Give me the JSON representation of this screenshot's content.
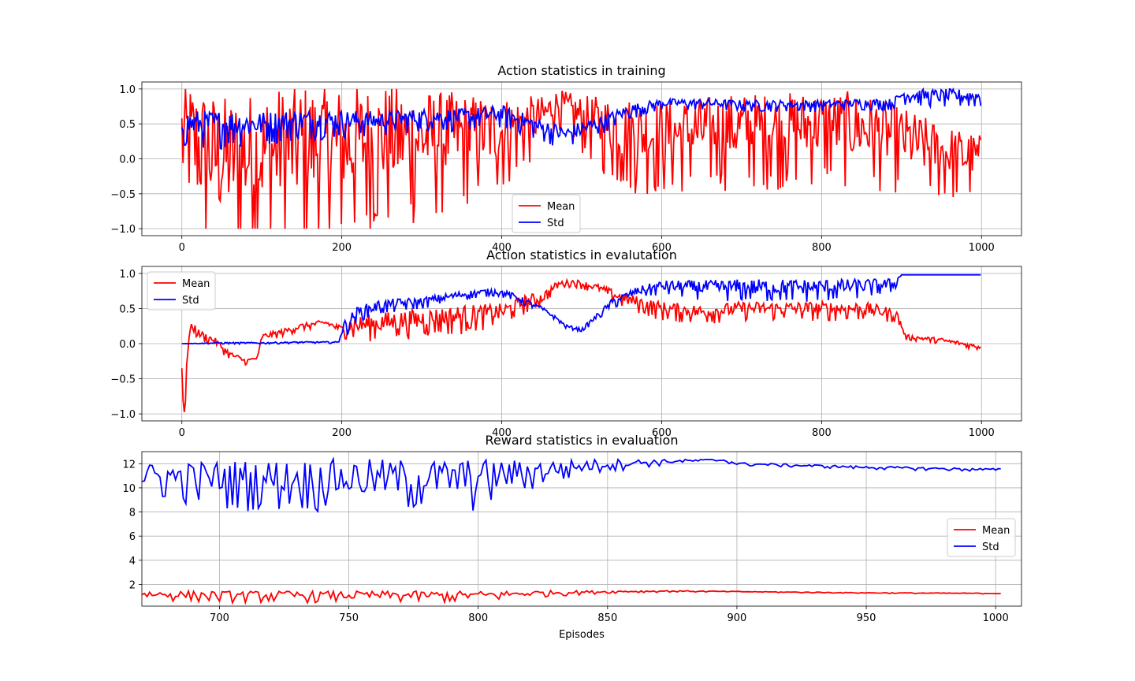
{
  "chart_data": [
    {
      "type": "line",
      "title": "Action statistics in training",
      "xlabel": "",
      "ylabel": "",
      "xlim": [
        -50,
        1050
      ],
      "ylim": [
        -1.1,
        1.1
      ],
      "xticks": [
        "0",
        "200",
        "400",
        "600",
        "800",
        "1000"
      ],
      "yticks": [
        "1.0",
        "0.5",
        "0.0",
        "−0.5",
        "−1.0"
      ],
      "grid": true,
      "legend": {
        "placement": "lower-center",
        "entries": [
          "Mean",
          "Std"
        ]
      },
      "series": [
        {
          "name": "Mean",
          "color": "#ff0000",
          "x": [
            0,
            50,
            100,
            150,
            200,
            250,
            300,
            350,
            400,
            450,
            470,
            500,
            550,
            600,
            650,
            700,
            750,
            800,
            850,
            900,
            950,
            1000
          ],
          "y": [
            0.3,
            0.0,
            0.1,
            0.2,
            0.2,
            0.3,
            0.3,
            0.35,
            0.4,
            0.6,
            0.8,
            0.6,
            0.4,
            0.35,
            0.4,
            0.45,
            0.45,
            0.5,
            0.45,
            0.3,
            0.1,
            0.0
          ],
          "noise": [
            0.9,
            0.9,
            0.9,
            0.9,
            0.85,
            0.8,
            0.7,
            0.6,
            0.5,
            0.3,
            0.2,
            0.3,
            0.5,
            0.5,
            0.5,
            0.5,
            0.5,
            0.5,
            0.5,
            0.45,
            0.4,
            0.35
          ]
        },
        {
          "name": "Std",
          "color": "#0000ff",
          "x": [
            0,
            50,
            100,
            150,
            200,
            250,
            300,
            350,
            400,
            450,
            480,
            520,
            560,
            600,
            650,
            700,
            750,
            800,
            850,
            890,
            900,
            950,
            1000
          ],
          "y": [
            0.5,
            0.5,
            0.5,
            0.55,
            0.55,
            0.55,
            0.6,
            0.6,
            0.65,
            0.45,
            0.35,
            0.5,
            0.7,
            0.8,
            0.8,
            0.78,
            0.78,
            0.78,
            0.8,
            0.8,
            0.92,
            0.9,
            0.9
          ],
          "noise": [
            0.2,
            0.2,
            0.18,
            0.16,
            0.15,
            0.13,
            0.12,
            0.12,
            0.12,
            0.12,
            0.12,
            0.1,
            0.08,
            0.06,
            0.06,
            0.06,
            0.06,
            0.06,
            0.06,
            0.06,
            0.08,
            0.1,
            0.1
          ]
        }
      ]
    },
    {
      "type": "line",
      "title": "Action statistics in evalutation",
      "xlabel": "",
      "ylabel": "",
      "xlim": [
        -50,
        1050
      ],
      "ylim": [
        -1.1,
        1.1
      ],
      "xticks": [
        "0",
        "200",
        "400",
        "600",
        "800",
        "1000"
      ],
      "yticks": [
        "1.0",
        "0.5",
        "0.0",
        "−0.5",
        "−1.0"
      ],
      "grid": true,
      "legend": {
        "placement": "upper-left",
        "entries": [
          "Mean",
          "Std"
        ]
      },
      "series": [
        {
          "name": "Mean",
          "color": "#ff0000",
          "x": [
            0,
            2,
            4,
            6,
            10,
            15,
            20,
            30,
            40,
            50,
            60,
            70,
            80,
            95,
            100,
            120,
            150,
            180,
            200,
            210,
            250,
            300,
            350,
            400,
            430,
            450,
            470,
            490,
            520,
            550,
            600,
            650,
            700,
            750,
            800,
            850,
            880,
            895,
            905,
            950,
            1000
          ],
          "y": [
            -0.35,
            -0.95,
            -1.0,
            -0.3,
            0.2,
            0.25,
            0.15,
            0.1,
            0.05,
            -0.05,
            -0.15,
            -0.2,
            -0.25,
            -0.2,
            0.1,
            0.15,
            0.25,
            0.3,
            0.2,
            0.25,
            0.3,
            0.35,
            0.4,
            0.45,
            0.6,
            0.65,
            0.85,
            0.88,
            0.8,
            0.65,
            0.5,
            0.45,
            0.5,
            0.5,
            0.5,
            0.5,
            0.45,
            0.4,
            0.1,
            0.05,
            -0.05
          ],
          "noise": [
            0,
            0,
            0,
            0,
            0.06,
            0.06,
            0.06,
            0.05,
            0.05,
            0.05,
            0.04,
            0.04,
            0.03,
            0.03,
            0.04,
            0.04,
            0.04,
            0.04,
            0.06,
            0.12,
            0.15,
            0.15,
            0.15,
            0.12,
            0.1,
            0.08,
            0.04,
            0.04,
            0.05,
            0.08,
            0.1,
            0.1,
            0.1,
            0.1,
            0.1,
            0.1,
            0.08,
            0.06,
            0.03,
            0.03,
            0.03
          ]
        },
        {
          "name": "Std",
          "color": "#0000ff",
          "x": [
            0,
            50,
            100,
            150,
            195,
            200,
            220,
            250,
            300,
            350,
            390,
            410,
            430,
            450,
            470,
            480,
            500,
            520,
            540,
            570,
            600,
            650,
            700,
            750,
            800,
            850,
            890,
            900,
            950,
            1000
          ],
          "y": [
            0.0,
            0.01,
            0.01,
            0.02,
            0.02,
            0.2,
            0.45,
            0.55,
            0.6,
            0.7,
            0.75,
            0.7,
            0.6,
            0.5,
            0.35,
            0.25,
            0.2,
            0.4,
            0.6,
            0.75,
            0.82,
            0.8,
            0.8,
            0.8,
            0.8,
            0.82,
            0.85,
            0.98,
            0.98,
            0.98
          ],
          "noise": [
            0,
            0.01,
            0.01,
            0.01,
            0.01,
            0.1,
            0.08,
            0.08,
            0.06,
            0.05,
            0.04,
            0.04,
            0.04,
            0.03,
            0.02,
            0.02,
            0.02,
            0.04,
            0.06,
            0.06,
            0.08,
            0.1,
            0.12,
            0.12,
            0.12,
            0.1,
            0.08,
            0.0,
            0.0,
            0.0
          ]
        }
      ]
    },
    {
      "type": "line",
      "title": "Reward statistics in evaluation",
      "xlabel": "Episodes",
      "ylabel": "",
      "xlim": [
        670,
        1010
      ],
      "ylim": [
        0.2,
        13.0
      ],
      "xticks": [
        "700",
        "750",
        "800",
        "850",
        "900",
        "950",
        "1000"
      ],
      "yticks": [
        "12",
        "10",
        "8",
        "6",
        "4",
        "2"
      ],
      "grid": true,
      "legend": {
        "placement": "center-right",
        "entries": [
          "Mean",
          "Std"
        ]
      },
      "series": [
        {
          "name": "Mean",
          "color": "#ff0000",
          "x": [
            670,
            700,
            750,
            800,
            825,
            850,
            875,
            900,
            950,
            1002
          ],
          "y": [
            1.2,
            1.1,
            1.1,
            1.1,
            1.3,
            1.4,
            1.45,
            1.4,
            1.3,
            1.25
          ],
          "noise": [
            0.3,
            0.35,
            0.35,
            0.35,
            0.2,
            0.08,
            0.05,
            0.03,
            0.03,
            0.03
          ]
        },
        {
          "name": "Std",
          "color": "#0000ff",
          "x": [
            670,
            700,
            750,
            800,
            825,
            850,
            875,
            895,
            900,
            950,
            1002
          ],
          "y": [
            11.0,
            10.8,
            10.8,
            10.8,
            11.5,
            12.0,
            12.2,
            12.3,
            12.0,
            11.7,
            11.5
          ],
          "noise": [
            1.0,
            1.5,
            1.6,
            1.6,
            0.8,
            0.4,
            0.15,
            0.1,
            0.1,
            0.1,
            0.1
          ]
        }
      ]
    }
  ]
}
